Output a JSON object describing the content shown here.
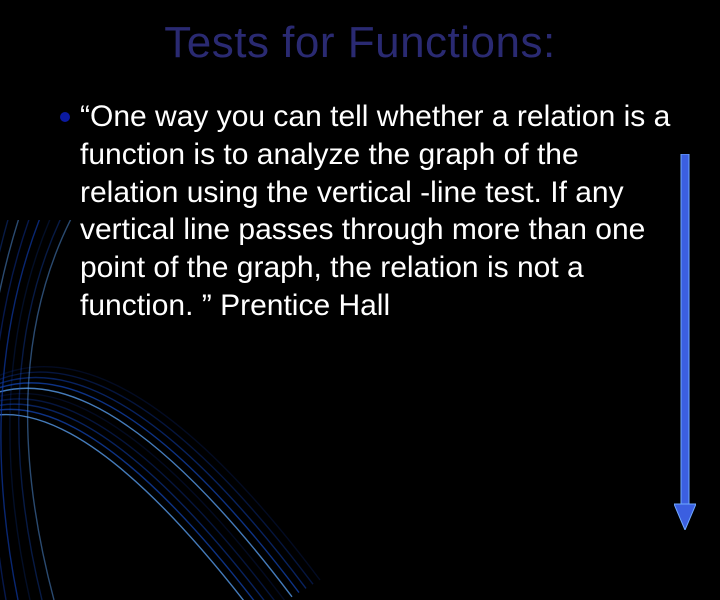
{
  "title": {
    "text": "Tests for Functions:",
    "color": "#2a2a72",
    "fontsize": 44
  },
  "bullet": {
    "color": "#0b1aa1",
    "size": 10
  },
  "body": {
    "text": "“One way you can tell whether a relation is a function is to analyze the graph of the relation using the vertical -line test. If any vertical line passes through more than one point of the graph, the relation is not a function. ” Prentice Hall",
    "color": "#ffffff",
    "fontsize": 30
  },
  "arrow": {
    "shaft_fill": "#3b5fe0",
    "shaft_stroke": "#6fa8ff",
    "head_fill": "#3b5fe0",
    "head_stroke": "#6fa8ff"
  },
  "background": {
    "color": "#000000",
    "curve_colors": [
      "#0a2a88",
      "#0d3aa8",
      "#1146c2",
      "#1552d8",
      "#5fa8ff"
    ],
    "curve_stroke_width": 1.4
  }
}
